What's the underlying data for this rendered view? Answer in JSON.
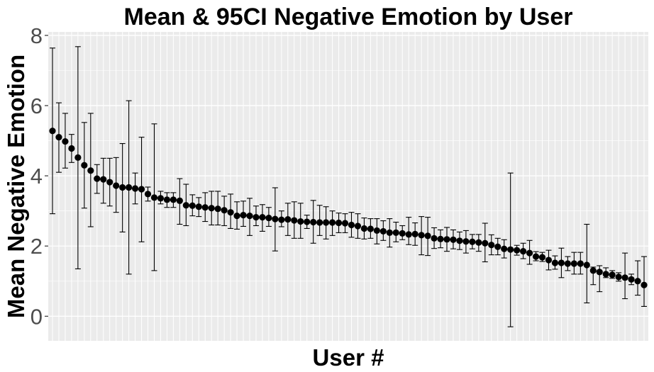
{
  "chart_data": {
    "type": "scatter",
    "title": "Mean & 95CI Negative Emotion by User",
    "xlabel": "User #",
    "ylabel": "Mean Negative Emotion",
    "ylim": [
      -0.7,
      8.1
    ],
    "yticks": [
      0,
      2,
      4,
      6,
      8
    ],
    "x_tick_labels_shown": false,
    "grid": true,
    "legend": "none",
    "colors": {
      "panel": "#EBEBEB",
      "grid": "#FFFFFF",
      "point": "#000000",
      "errorbar": "#000000",
      "tick_label": "#4D4D4D"
    },
    "series": [
      {
        "mean": [
          5.28,
          5.1,
          4.98,
          4.78,
          4.52,
          4.3,
          4.15,
          3.92,
          3.9,
          3.82,
          3.72,
          3.67,
          3.67,
          3.64,
          3.62,
          3.48,
          3.38,
          3.36,
          3.32,
          3.32,
          3.29,
          3.16,
          3.15,
          3.12,
          3.1,
          3.08,
          3.06,
          3.02,
          2.96,
          2.86,
          2.88,
          2.86,
          2.82,
          2.82,
          2.8,
          2.77,
          2.75,
          2.76,
          2.73,
          2.7,
          2.69,
          2.68,
          2.67,
          2.67,
          2.67,
          2.66,
          2.65,
          2.6,
          2.57,
          2.5,
          2.49,
          2.44,
          2.42,
          2.38,
          2.38,
          2.36,
          2.33,
          2.34,
          2.31,
          2.29,
          2.22,
          2.2,
          2.19,
          2.18,
          2.15,
          2.13,
          2.12,
          2.1,
          2.08,
          2.03,
          1.98,
          1.92,
          1.9,
          1.88,
          1.85,
          1.8,
          1.7,
          1.68,
          1.6,
          1.52,
          1.52,
          1.5,
          1.5,
          1.5,
          1.46,
          1.3,
          1.26,
          1.2,
          1.18,
          1.12,
          1.1,
          1.05,
          1.0,
          0.89
        ],
        "lower": [
          2.92,
          4.1,
          4.22,
          4.38,
          1.35,
          3.08,
          2.55,
          3.5,
          3.22,
          3.14,
          2.96,
          2.4,
          1.2,
          3.2,
          2.12,
          3.28,
          1.3,
          3.2,
          3.1,
          3.1,
          2.62,
          2.58,
          2.86,
          2.84,
          2.7,
          2.6,
          2.6,
          2.58,
          2.5,
          2.48,
          2.56,
          2.3,
          2.58,
          2.42,
          2.56,
          1.86,
          2.55,
          2.3,
          2.22,
          2.22,
          2.5,
          2.08,
          2.3,
          2.2,
          2.3,
          2.38,
          2.38,
          2.25,
          2.22,
          2.2,
          2.22,
          2.06,
          2.16,
          1.97,
          2.12,
          2.18,
          2.04,
          2.02,
          1.75,
          1.73,
          1.93,
          1.95,
          1.85,
          1.92,
          1.9,
          1.8,
          1.92,
          1.85,
          1.55,
          1.75,
          1.75,
          1.66,
          -0.3,
          1.74,
          1.64,
          1.48,
          1.58,
          1.56,
          1.32,
          1.34,
          1.1,
          1.3,
          1.2,
          1.2,
          0.38,
          0.9,
          0.7,
          1.1,
          1.08,
          1.0,
          0.5,
          0.9,
          0.6,
          0.28
        ],
        "upper": [
          7.64,
          6.08,
          5.78,
          5.18,
          7.68,
          5.52,
          5.78,
          4.32,
          4.5,
          4.5,
          4.52,
          4.92,
          6.14,
          4.08,
          5.1,
          3.68,
          5.48,
          3.56,
          3.52,
          3.52,
          3.92,
          3.76,
          3.46,
          3.38,
          3.52,
          3.56,
          3.56,
          3.42,
          3.48,
          3.26,
          3.28,
          3.36,
          3.14,
          3.18,
          3.1,
          3.66,
          3.0,
          3.22,
          3.26,
          3.22,
          2.88,
          3.3,
          3.16,
          3.12,
          3.0,
          2.94,
          2.92,
          2.96,
          2.92,
          2.8,
          2.78,
          2.78,
          2.72,
          2.78,
          2.68,
          2.58,
          2.82,
          2.66,
          2.84,
          2.82,
          2.52,
          2.46,
          2.53,
          2.46,
          2.4,
          2.44,
          2.33,
          2.33,
          2.65,
          2.32,
          2.22,
          2.18,
          4.08,
          2.02,
          2.08,
          2.16,
          1.84,
          1.82,
          1.88,
          1.72,
          1.94,
          1.7,
          1.82,
          1.82,
          2.62,
          1.4,
          1.44,
          1.38,
          1.3,
          1.24,
          1.8,
          1.2,
          1.58,
          1.7
        ]
      }
    ]
  }
}
